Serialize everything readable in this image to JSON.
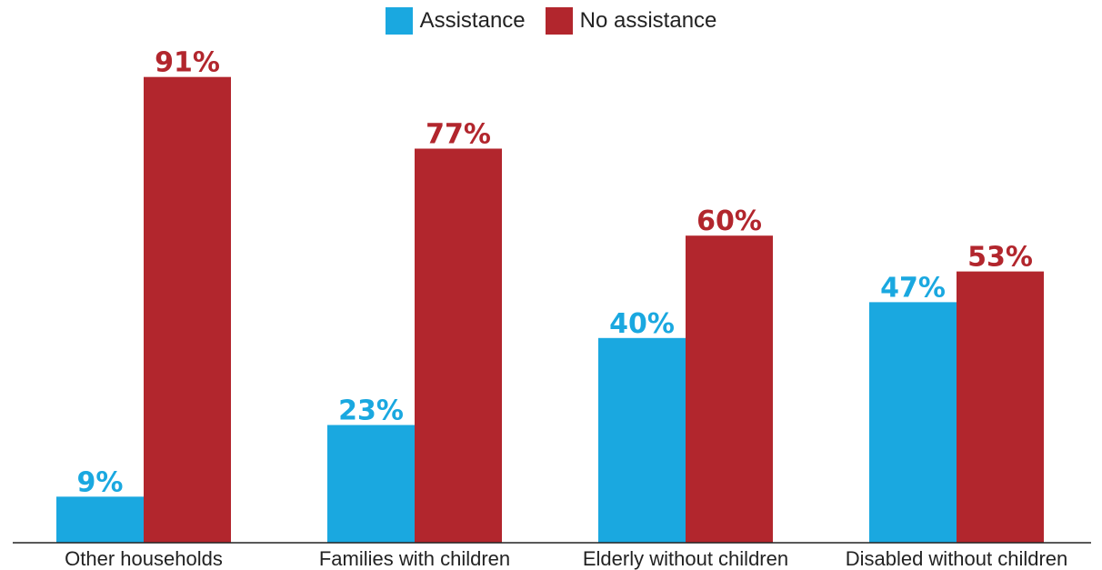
{
  "chart_data": {
    "type": "bar",
    "title": "",
    "xlabel": "",
    "ylabel": "",
    "ylim": [
      0,
      100
    ],
    "grid": false,
    "legend_position": "top-center",
    "categories": [
      "Other households",
      "Families with children",
      "Elderly without children",
      "Disabled without children"
    ],
    "series": [
      {
        "name": "Assistance",
        "color": "#1aa8e0",
        "values": [
          9,
          23,
          40,
          47
        ],
        "labels": [
          "9%",
          "23%",
          "40%",
          "47%"
        ]
      },
      {
        "name": "No assistance",
        "color": "#b2262d",
        "values": [
          91,
          77,
          60,
          53
        ],
        "labels": [
          "91%",
          "77%",
          "60%",
          "53%"
        ]
      }
    ]
  }
}
